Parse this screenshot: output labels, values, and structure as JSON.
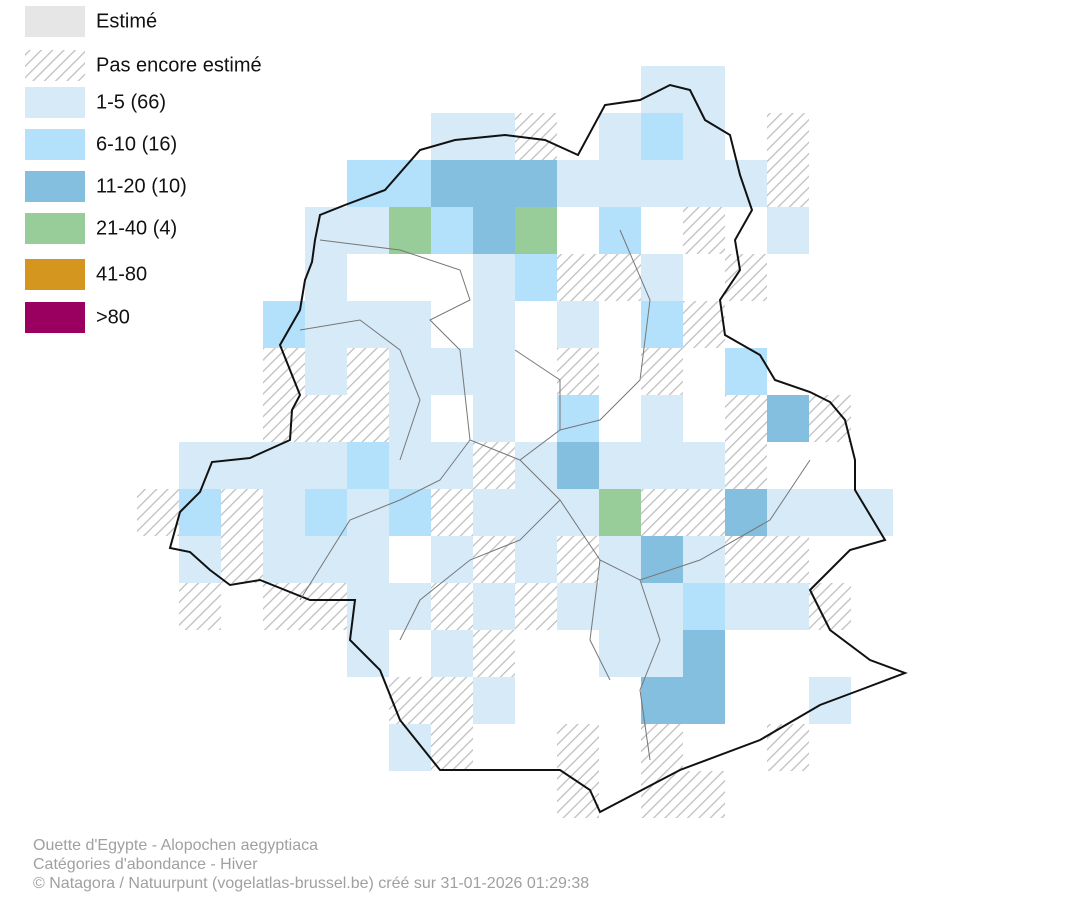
{
  "legend": [
    {
      "label": "Estimé",
      "color": "#e6e6e6"
    },
    {
      "label": "Pas encore estimé",
      "color": "#bdbdbd",
      "pattern": "hatch"
    },
    {
      "label": "1-5 (66)",
      "color": "#d6eaf8"
    },
    {
      "label": "6-10 (16)",
      "color": "#b3e0fa"
    },
    {
      "label": "11-20 (10)",
      "color": "#85bfdf"
    },
    {
      "label": "21-40 (4)",
      "color": "#98cc98"
    },
    {
      "label": "41-80",
      "color": "#d4961f"
    },
    {
      "label": ">80",
      "color": "#99005f"
    }
  ],
  "footer": [
    "Ouette d'Egypte - Alopochen aegyptiaca",
    "Catégories d'abondance - Hiver",
    "© Natagora / Natuurpunt (vogelatlas-brussel.be) créé sur 31-01-2026 01:29:38"
  ]
}
